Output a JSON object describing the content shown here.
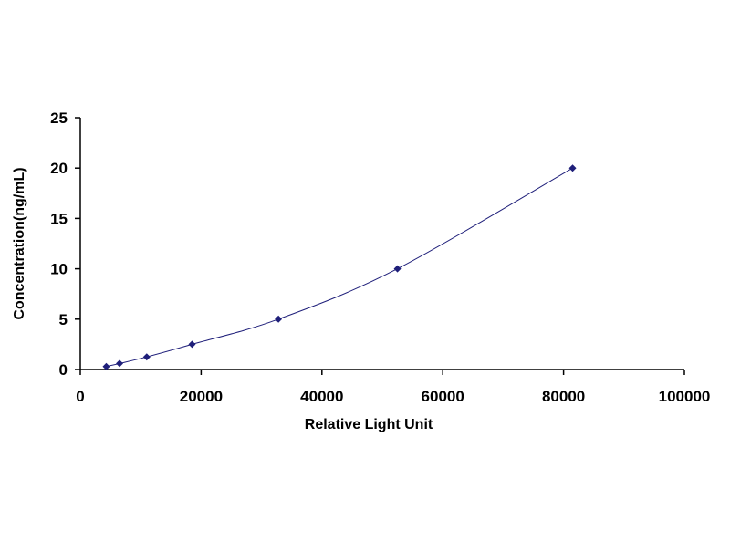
{
  "chart_data": {
    "type": "scatter",
    "title": "",
    "xlabel": "Relative Light Unit",
    "ylabel": "Concentration(ng/mL)",
    "xlim": [
      0,
      100000
    ],
    "ylim": [
      0,
      25
    ],
    "xticks": [
      0,
      20000,
      40000,
      60000,
      80000,
      100000
    ],
    "yticks": [
      0,
      5,
      10,
      15,
      20,
      25
    ],
    "grid": false,
    "legend": "none",
    "series": [
      {
        "x": [
          4300,
          6500,
          11000,
          18500,
          32800,
          52500,
          81500
        ],
        "y": [
          0.3,
          0.6,
          1.25,
          2.5,
          5,
          10,
          20
        ],
        "color": "#1f1f7a",
        "fit_line": true
      }
    ]
  }
}
